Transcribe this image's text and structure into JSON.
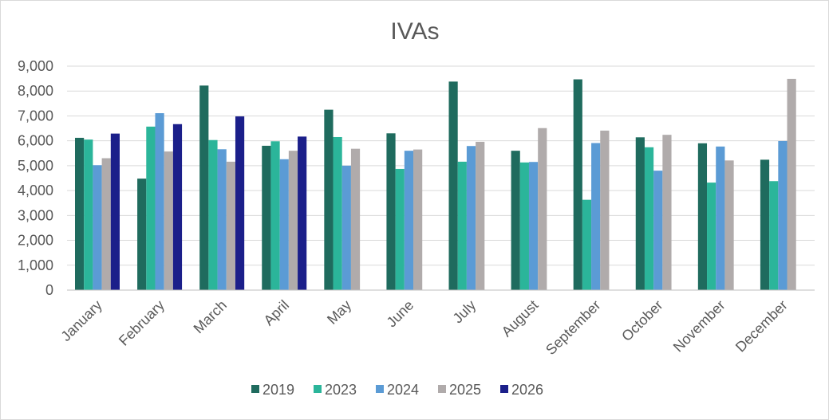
{
  "chart_data": {
    "type": "bar",
    "title": "IVAs",
    "xlabel": "",
    "ylabel": "",
    "categories": [
      "January",
      "February",
      "March",
      "April",
      "May",
      "June",
      "July",
      "August",
      "September",
      "October",
      "November",
      "December"
    ],
    "y_ticks": [
      "0",
      "1,000",
      "2,000",
      "3,000",
      "4,000",
      "5,000",
      "6,000",
      "7,000",
      "8,000",
      "9,000"
    ],
    "ylim": [
      0,
      9000
    ],
    "grid": true,
    "legend_position": "bottom",
    "series": [
      {
        "name": "2019",
        "color": "#1f6b5e",
        "values": [
          6120,
          4480,
          8220,
          5800,
          7250,
          6300,
          8380,
          5600,
          8470,
          6140,
          5900,
          5240
        ]
      },
      {
        "name": "2023",
        "color": "#2bb59a",
        "values": [
          6050,
          6570,
          6030,
          5980,
          6150,
          4870,
          5160,
          5130,
          3630,
          5740,
          4320,
          4380
        ]
      },
      {
        "name": "2024",
        "color": "#5b9bd5",
        "values": [
          5020,
          7110,
          5660,
          5260,
          5000,
          5600,
          5790,
          5150,
          5910,
          4800,
          5770,
          5990
        ]
      },
      {
        "name": "2025",
        "color": "#b0abab",
        "values": [
          5300,
          5570,
          5160,
          5600,
          5680,
          5650,
          5960,
          6510,
          6410,
          6240,
          5210,
          8490
        ]
      },
      {
        "name": "2026",
        "color": "#1b1f8a",
        "values": [
          6290,
          6670,
          6980,
          6170,
          null,
          null,
          null,
          null,
          null,
          null,
          null,
          null
        ]
      }
    ]
  }
}
